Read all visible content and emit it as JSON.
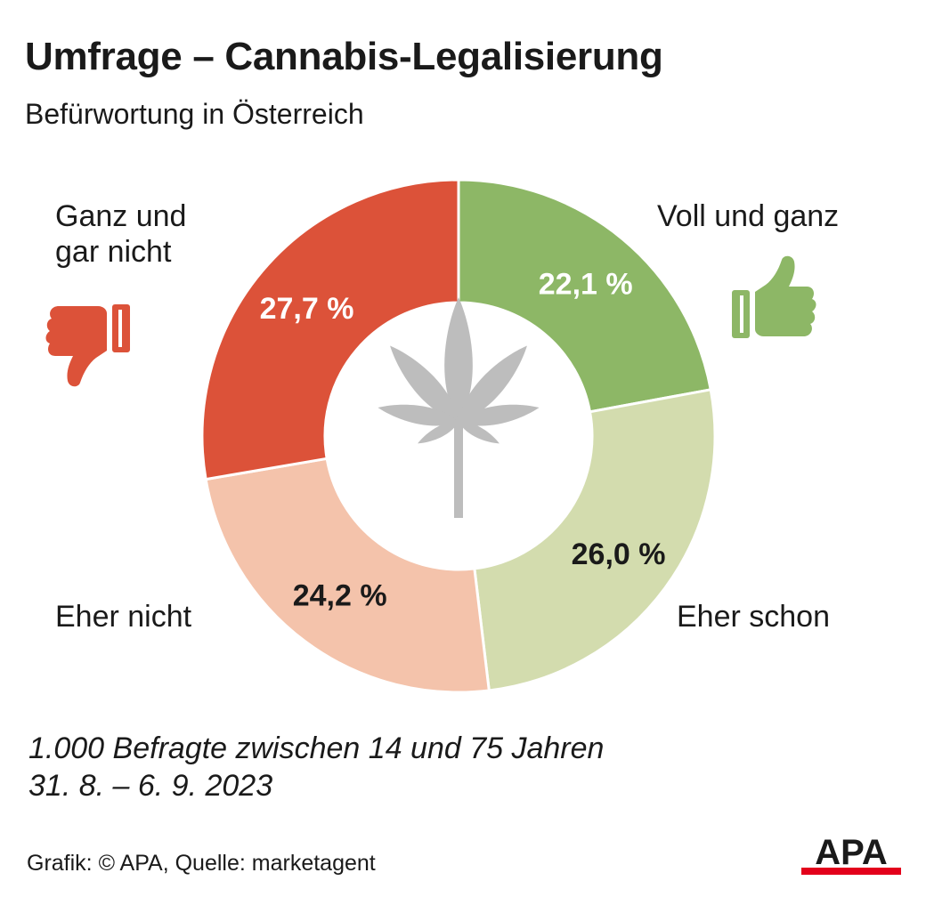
{
  "header": {
    "title": "Umfrage – Cannabis-Legalisierung",
    "subtitle": "Befürwortung in Österreich"
  },
  "chart_data": {
    "type": "pie",
    "donut": true,
    "title": "Umfrage – Cannabis-Legalisierung",
    "subtitle": "Befürwortung in Österreich",
    "categories": [
      "Voll und ganz",
      "Eher schon",
      "Eher nicht",
      "Ganz und gar nicht"
    ],
    "values": [
      22.1,
      26.0,
      24.2,
      27.7
    ],
    "value_labels": [
      "22,1 %",
      "26,0 %",
      "24,2 %",
      "27,7 %"
    ],
    "colors": [
      "#8db766",
      "#d3dcae",
      "#f4c3ab",
      "#dc5239"
    ],
    "label_colors": [
      "#ffffff",
      "#1a1a1a",
      "#1a1a1a",
      "#ffffff"
    ],
    "legend": "direct labels around the donut",
    "center_icon": "cannabis-leaf-icon"
  },
  "labels": {
    "voll": "Voll und ganz",
    "eher_schon": "Eher schon",
    "eher_nicht": "Eher nicht",
    "ganz_gar_nicht": "Ganz und\ngar nicht"
  },
  "icons": {
    "approve": "thumbs-up-icon",
    "reject": "thumbs-down-icon",
    "center": "cannabis-leaf-icon",
    "approve_color": "#8db766",
    "reject_color": "#dc5239",
    "leaf_color": "#bdbdbd"
  },
  "footer": {
    "note_line1": "1.000 Befragte zwischen 14 und 75 Jahren",
    "note_line2": "31. 8. – 6. 9. 2023",
    "credit": "Grafik: © APA, Quelle: marketagent",
    "logo_text": "APA",
    "logo_bar_color": "#e3001b"
  }
}
